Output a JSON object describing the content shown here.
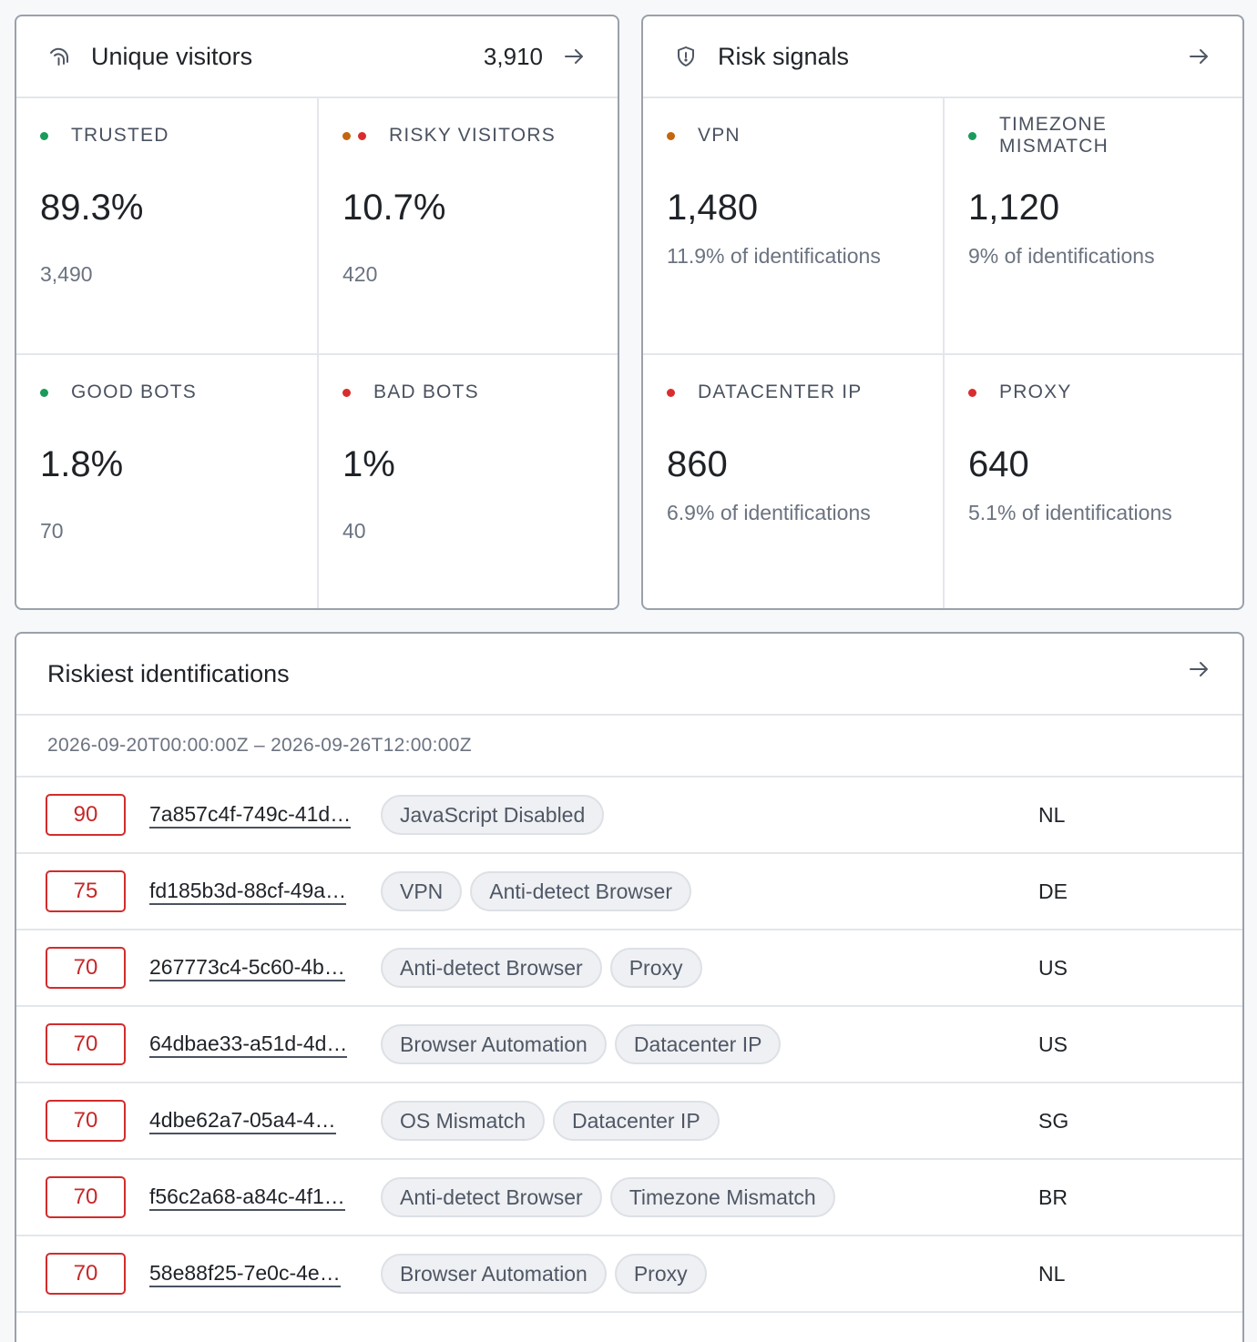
{
  "visitors": {
    "title": "Unique visitors",
    "count": "3,910",
    "cells": [
      {
        "label": "TRUSTED",
        "value": "89.3%",
        "sub": "3,490",
        "dots": [
          "#1a9b5b"
        ]
      },
      {
        "label": "RISKY VISITORS",
        "value": "10.7%",
        "sub": "420",
        "dots": [
          "#c4660e",
          "#d92d2d"
        ]
      },
      {
        "label": "GOOD BOTS",
        "value": "1.8%",
        "sub": "70",
        "dots": [
          "#1a9b5b"
        ]
      },
      {
        "label": "BAD BOTS",
        "value": "1%",
        "sub": "40",
        "dots": [
          "#d92d2d"
        ]
      }
    ]
  },
  "risk": {
    "title": "Risk signals",
    "cells": [
      {
        "label": "VPN",
        "value": "1,480",
        "sub": "11.9% of identifications",
        "dots": [
          "#c4660e"
        ]
      },
      {
        "label": "TIMEZONE MISMATCH",
        "value": "1,120",
        "sub": "9% of identifications",
        "dots": [
          "#1a9b5b"
        ]
      },
      {
        "label": "DATACENTER IP",
        "value": "860",
        "sub": "6.9% of identifications",
        "dots": [
          "#d92d2d"
        ]
      },
      {
        "label": "PROXY",
        "value": "640",
        "sub": "5.1% of identifications",
        "dots": [
          "#d92d2d"
        ]
      }
    ]
  },
  "riskiest": {
    "title": "Riskiest identifications",
    "range": "2026-09-20T00:00:00Z – 2026-09-26T12:00:00Z",
    "rows": [
      {
        "score": "90",
        "id": "7a857c4f-749c-41d…",
        "tags": [
          "JavaScript Disabled"
        ],
        "country": "NL"
      },
      {
        "score": "75",
        "id": "fd185b3d-88cf-49a…",
        "tags": [
          "VPN",
          "Anti-detect Browser"
        ],
        "country": "DE"
      },
      {
        "score": "70",
        "id": "267773c4-5c60-4b…",
        "tags": [
          "Anti-detect Browser",
          "Proxy"
        ],
        "country": "US"
      },
      {
        "score": "70",
        "id": "64dbae33-a51d-4d…",
        "tags": [
          "Browser Automation",
          "Datacenter IP"
        ],
        "country": "US"
      },
      {
        "score": "70",
        "id": "4dbe62a7-05a4-4…",
        "tags": [
          "OS Mismatch",
          "Datacenter IP"
        ],
        "country": "SG"
      },
      {
        "score": "70",
        "id": "f56c2a68-a84c-4f1…",
        "tags": [
          "Anti-detect Browser",
          "Timezone Mismatch"
        ],
        "country": "BR"
      },
      {
        "score": "70",
        "id": "58e88f25-7e0c-4e…",
        "tags": [
          "Browser Automation",
          "Proxy"
        ],
        "country": "NL"
      }
    ]
  },
  "icons": {
    "visitors": "fingerprint-icon",
    "risk": "shield-icon",
    "arrow": "arrow-right-icon"
  }
}
